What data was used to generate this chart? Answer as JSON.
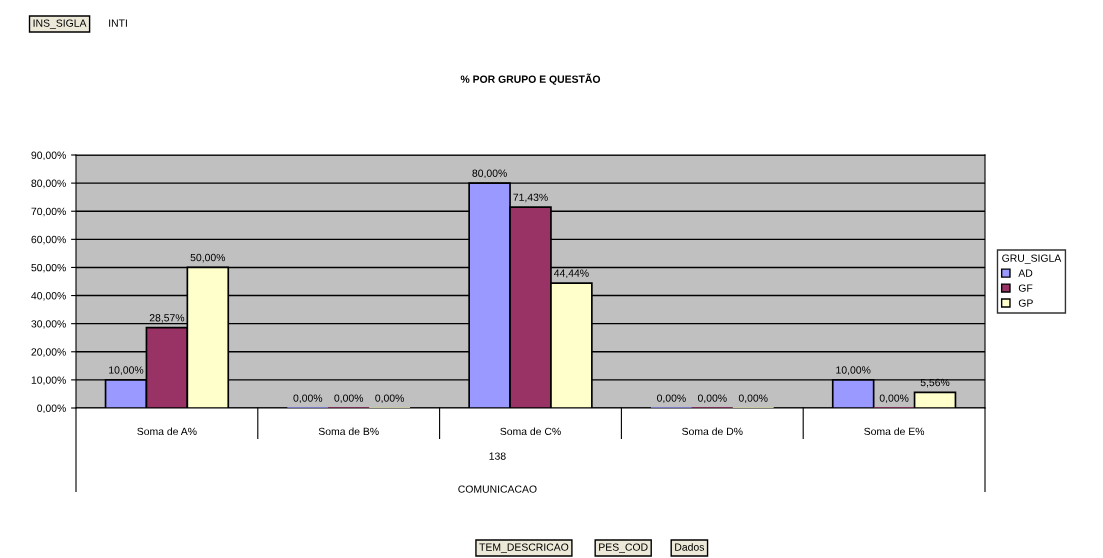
{
  "chart_data": {
    "type": "bar",
    "title": "% POR GRUPO E QUESTÃO",
    "categories": [
      "Soma de A%",
      "Soma de B%",
      "Soma de C%",
      "Soma de D%",
      "Soma de E%"
    ],
    "series": [
      {
        "name": "AD",
        "color": "#9999ff",
        "values": [
          10,
          0,
          80,
          0,
          10
        ],
        "value_labels": [
          "10,00%",
          "0,00%",
          "80,00%",
          "0,00%",
          "10,00%"
        ]
      },
      {
        "name": "GF",
        "color": "#993366",
        "values": [
          28.57,
          0,
          71.43,
          0,
          0
        ],
        "value_labels": [
          "28,57%",
          "0,00%",
          "71,43%",
          "0,00%",
          "0,00%"
        ]
      },
      {
        "name": "GP",
        "color": "#ffffcc",
        "values": [
          50,
          0,
          44.44,
          0,
          5.56
        ],
        "value_labels": [
          "50,00%",
          "0,00%",
          "44,44%",
          "0,00%",
          "5,56%"
        ]
      }
    ],
    "ylim": [
      0,
      90
    ],
    "yticks": [
      {
        "value": 0,
        "label": "0,00%"
      },
      {
        "value": 10,
        "label": "10,00%"
      },
      {
        "value": 20,
        "label": "20,00%"
      },
      {
        "value": 30,
        "label": "30,00%"
      },
      {
        "value": 40,
        "label": "40,00%"
      },
      {
        "value": 50,
        "label": "50,00%"
      },
      {
        "value": 60,
        "label": "60,00%"
      },
      {
        "value": 70,
        "label": "70,00%"
      },
      {
        "value": 80,
        "label": "80,00%"
      },
      {
        "value": 90,
        "label": "90,00%"
      }
    ],
    "grid": "y",
    "legend": "right",
    "legend_title": "GRU_SIGLA",
    "annotations": [
      "INS_SIGLA",
      "INTI",
      "138",
      "COMUNICACAO",
      "TEM_DESCRICAO",
      "PES_COD",
      "Dados"
    ]
  }
}
